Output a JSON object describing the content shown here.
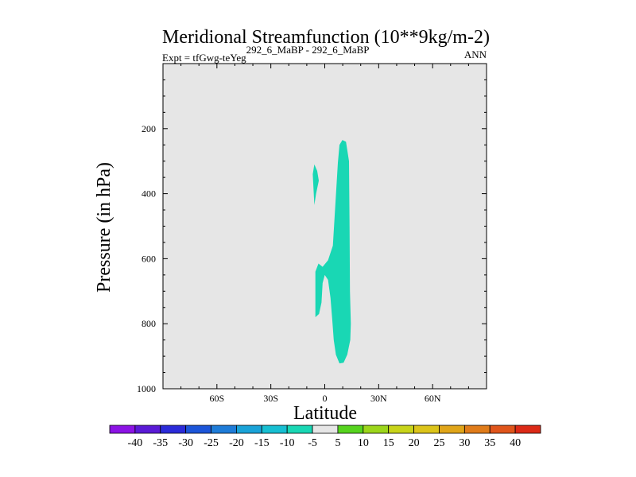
{
  "chart_data": {
    "type": "contour",
    "title": "Meridional Streamfunction (10**9kg/m-2)",
    "subtitle_left_prefix": "Expt = tfGwg-teYeg",
    "subtitle_left_super": "292_6_MaBP - 292_6_MaBP",
    "subtitle_right": "ANN",
    "xlabel": "Latitude",
    "ylabel": "Pressure (in hPa)",
    "xlim": [
      -90,
      90
    ],
    "ylim": [
      0,
      1000
    ],
    "y_reversed": true,
    "x_ticks": [
      {
        "value": -60,
        "label": "60S"
      },
      {
        "value": -30,
        "label": "30S"
      },
      {
        "value": 0,
        "label": "0"
      },
      {
        "value": 30,
        "label": "30N"
      },
      {
        "value": 60,
        "label": "60N"
      }
    ],
    "y_ticks": [
      {
        "value": 200,
        "label": "200"
      },
      {
        "value": 400,
        "label": "400"
      },
      {
        "value": 600,
        "label": "600"
      },
      {
        "value": 800,
        "label": "800"
      },
      {
        "value": 1000,
        "label": "1000"
      }
    ],
    "background_color": "#e6e6e6",
    "regions": [
      {
        "name": "minus5-to-0-main",
        "range": [
          -5,
          0
        ],
        "color": "#19d7b4",
        "polygon": [
          [
            9.8,
            235
          ],
          [
            11.8,
            240
          ],
          [
            13.5,
            300
          ],
          [
            13.8,
            500
          ],
          [
            14,
            700
          ],
          [
            14.5,
            800
          ],
          [
            14.2,
            850
          ],
          [
            12.5,
            895
          ],
          [
            10.5,
            920
          ],
          [
            8.2,
            922
          ],
          [
            6.2,
            895
          ],
          [
            5,
            850
          ],
          [
            4.2,
            790
          ],
          [
            3.2,
            720
          ],
          [
            1.8,
            665
          ],
          [
            0,
            650
          ],
          [
            -1.2,
            675
          ],
          [
            -1.8,
            735
          ],
          [
            -3.2,
            770
          ],
          [
            -5.2,
            780
          ],
          [
            -5.2,
            640
          ],
          [
            -3.5,
            615
          ],
          [
            -1.2,
            625
          ],
          [
            1.8,
            605
          ],
          [
            4.5,
            560
          ],
          [
            7.3,
            305
          ],
          [
            8.2,
            250
          ]
        ]
      },
      {
        "name": "minus5-to-0-small",
        "range": [
          -5,
          0
        ],
        "color": "#19d7b4",
        "polygon": [
          [
            -5.8,
            310
          ],
          [
            -4.2,
            330
          ],
          [
            -3.3,
            360
          ],
          [
            -4.8,
            400
          ],
          [
            -5.8,
            435
          ],
          [
            -6.7,
            340
          ]
        ]
      }
    ],
    "colorbar": {
      "levels": [
        "-40",
        "-35",
        "-30",
        "-25",
        "-20",
        "-15",
        "-10",
        "-5",
        "5",
        "10",
        "15",
        "20",
        "25",
        "30",
        "35",
        "40"
      ],
      "colors": [
        "#8c13e5",
        "#5a1ad6",
        "#2b2bd9",
        "#1c55d9",
        "#1e7cd8",
        "#1aa3d8",
        "#17bfd2",
        "#19d7b4",
        "#e6e6e6",
        "#56d41e",
        "#9cd61b",
        "#c8d41a",
        "#dcc41a",
        "#e0a519",
        "#e07c1a",
        "#e0551b",
        "#dc2a17"
      ]
    }
  }
}
